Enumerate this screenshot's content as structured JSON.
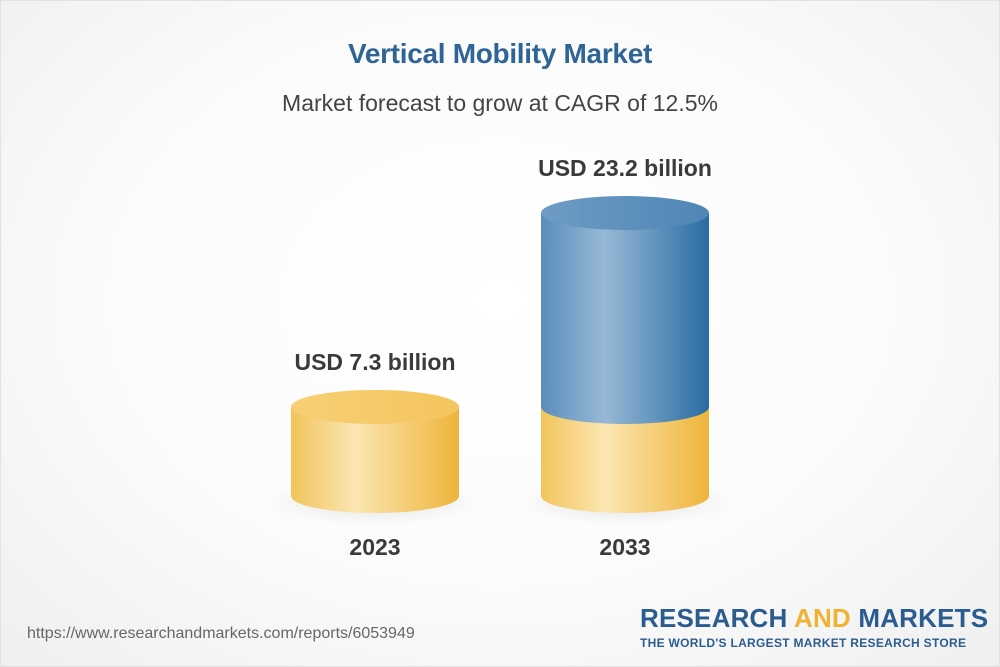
{
  "chart_data": {
    "type": "bar",
    "title": "Vertical Mobility Market",
    "subtitle": "Market forecast to grow at CAGR of 12.5%",
    "categories": [
      "2023",
      "2033"
    ],
    "values": [
      7.3,
      23.2
    ],
    "value_labels": [
      "USD 7.3 billion",
      "USD 23.2 billion"
    ],
    "unit": "USD billion",
    "xlabel": "",
    "ylabel": "",
    "grid": false,
    "legend": "none",
    "colors": {
      "base": "#f2bd4a",
      "base_light": "#fbe5b0",
      "growth": "#2b6aa0",
      "growth_light": "#8fb4d2"
    }
  },
  "footer": {
    "url": "https://www.researchandmarkets.com/reports/6053949",
    "logo_word1": "RESEARCH ",
    "logo_word2": "AND",
    "logo_word3": " MARKETS",
    "tagline": "THE WORLD'S LARGEST MARKET RESEARCH STORE"
  }
}
